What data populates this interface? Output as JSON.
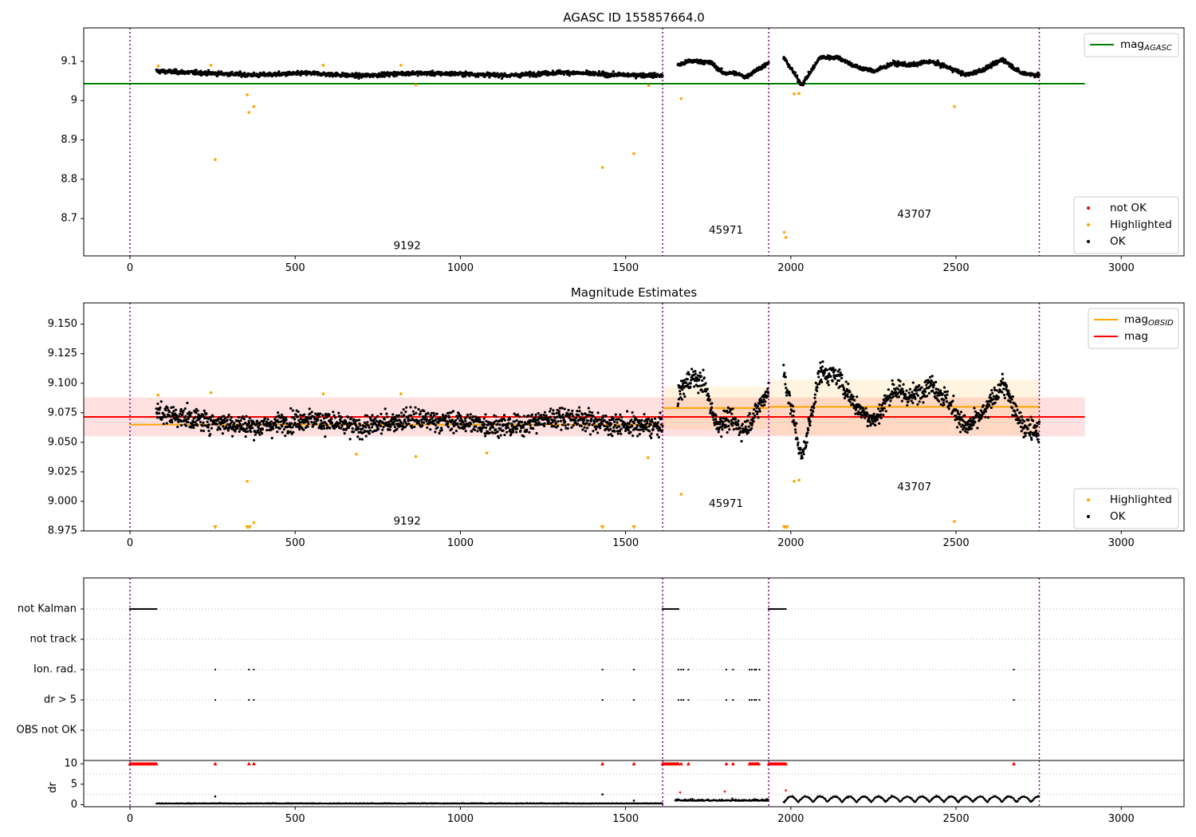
{
  "chart_data": [
    {
      "type": "scatter",
      "title": "AGASC ID 155857664.0",
      "xlim": [
        -140,
        3190
      ],
      "ylim": [
        8.605,
        9.185
      ],
      "xticks": [
        0,
        500,
        1000,
        1500,
        2000,
        2500,
        3000
      ],
      "yticks": [
        8.7,
        8.8,
        8.9,
        9.0,
        9.1
      ],
      "obs_boundaries": [
        0,
        1612,
        1933,
        2752
      ],
      "obsid_labels": [
        {
          "text": "9192",
          "x": 805,
          "y": 8.63
        },
        {
          "text": "45971",
          "x": 1770,
          "y": 8.67
        },
        {
          "text": "43707",
          "x": 2340,
          "y": 8.71
        }
      ],
      "lines": [
        {
          "name": "mag",
          "subscript": "AGASC",
          "color": "#008000",
          "x": [
            -140,
            2890
          ],
          "y": [
            9.043,
            9.043
          ]
        }
      ],
      "legend_top": [
        {
          "label": "mag",
          "subscript": "AGASC",
          "color": "#008000",
          "kind": "line"
        }
      ],
      "legend_bottom": [
        {
          "label": "not OK",
          "color": "#ff0000",
          "kind": "dot"
        },
        {
          "label": "Highlighted",
          "color": "#ffa500",
          "kind": "dot"
        },
        {
          "label": "OK",
          "color": "#000000",
          "kind": "dot"
        }
      ],
      "segments": [
        {
          "x": [
            80,
            1612
          ],
          "levels": [
            9.075,
            9.07,
            9.065,
            9.07,
            9.063,
            9.07,
            9.068,
            9.064,
            9.072,
            9.066,
            9.064
          ]
        },
        {
          "x": [
            1658,
            1933
          ],
          "levels": [
            9.09,
            9.1,
            9.1,
            9.095,
            9.07,
            9.07,
            9.06,
            9.08,
            9.095
          ]
        },
        {
          "x": [
            1978,
            2752
          ],
          "levels": [
            9.11,
            9.04,
            9.11,
            9.11,
            9.085,
            9.075,
            9.095,
            9.09,
            9.1,
            9.085,
            9.065,
            9.08,
            9.105,
            9.07,
            9.065
          ]
        }
      ],
      "highlighted": [
        {
          "x": 85,
          "y": 9.088
        },
        {
          "x": 245,
          "y": 9.09
        },
        {
          "x": 258,
          "y": 8.85
        },
        {
          "x": 355,
          "y": 9.015
        },
        {
          "x": 360,
          "y": 8.97
        },
        {
          "x": 375,
          "y": 8.985
        },
        {
          "x": 585,
          "y": 9.09
        },
        {
          "x": 820,
          "y": 9.09
        },
        {
          "x": 865,
          "y": 9.04
        },
        {
          "x": 1430,
          "y": 8.83
        },
        {
          "x": 1525,
          "y": 8.865
        },
        {
          "x": 1570,
          "y": 9.038
        },
        {
          "x": 1668,
          "y": 9.005
        },
        {
          "x": 1980,
          "y": 8.665
        },
        {
          "x": 1985,
          "y": 8.652
        },
        {
          "x": 2010,
          "y": 9.017
        },
        {
          "x": 2025,
          "y": 9.018
        },
        {
          "x": 2495,
          "y": 8.985
        }
      ],
      "not_ok": []
    },
    {
      "type": "scatter",
      "title": "Magnitude Estimates",
      "xlim": [
        -140,
        3190
      ],
      "ylim": [
        8.975,
        9.168
      ],
      "xticks": [
        0,
        500,
        1000,
        1500,
        2000,
        2500,
        3000
      ],
      "yticks": [
        8.975,
        9.0,
        9.025,
        9.05,
        9.075,
        9.1,
        9.125,
        9.15
      ],
      "ytick_labels": [
        "8.975",
        "9.000",
        "9.025",
        "9.050",
        "9.075",
        "9.100",
        "9.125",
        "9.150"
      ],
      "obs_boundaries": [
        0,
        1612,
        1933,
        2752
      ],
      "obsid_labels": [
        {
          "text": "9192",
          "x": 805,
          "y": 8.983
        },
        {
          "text": "45971",
          "x": 1770,
          "y": 8.998
        },
        {
          "text": "43707",
          "x": 2340,
          "y": 9.012
        }
      ],
      "lines": [
        {
          "name": "mag",
          "color": "#ff0000",
          "x": [
            -140,
            2890
          ],
          "y": [
            9.0715,
            9.0715
          ]
        },
        {
          "name": "mag",
          "subscript": "OBSID",
          "color": "#ffa500",
          "x": [
            0,
            1612
          ],
          "y": [
            9.065,
            9.065
          ]
        },
        {
          "name": "mag",
          "subscript": "OBSID",
          "color": "#ffa500",
          "x": [
            1612,
            1933
          ],
          "y": [
            9.079,
            9.079
          ]
        },
        {
          "name": "mag",
          "subscript": "OBSID",
          "color": "#ffa500",
          "x": [
            1933,
            2752
          ],
          "y": [
            9.08,
            9.08
          ]
        }
      ],
      "bands": [
        {
          "color": "#ff0000",
          "opacity": 0.12,
          "x": [
            -140,
            2890
          ],
          "y": [
            9.055,
            9.088
          ]
        },
        {
          "color": "#ffa500",
          "opacity": 0.12,
          "x": [
            1612,
            1933
          ],
          "y": [
            9.061,
            9.097
          ]
        },
        {
          "color": "#ffa500",
          "opacity": 0.12,
          "x": [
            1933,
            2752
          ],
          "y": [
            9.056,
            9.103
          ]
        }
      ],
      "legend_top": [
        {
          "label": "mag",
          "subscript": "OBSID",
          "color": "#ffa500",
          "kind": "line"
        },
        {
          "label": "mag",
          "color": "#ff0000",
          "kind": "line"
        }
      ],
      "legend_bottom": [
        {
          "label": "Highlighted",
          "color": "#ffa500",
          "kind": "dot"
        },
        {
          "label": "OK",
          "color": "#000000",
          "kind": "dot"
        }
      ],
      "segments": [
        {
          "x": [
            80,
            1612
          ],
          "levels": [
            9.075,
            9.068,
            9.063,
            9.07,
            9.062,
            9.07,
            9.067,
            9.063,
            9.072,
            9.065,
            9.063
          ]
        },
        {
          "x": [
            1658,
            1933
          ],
          "levels": [
            9.09,
            9.105,
            9.1,
            9.065,
            9.07,
            9.06,
            9.075,
            9.095
          ]
        },
        {
          "x": [
            1978,
            2752
          ],
          "levels": [
            9.11,
            9.035,
            9.11,
            9.105,
            9.08,
            9.068,
            9.095,
            9.088,
            9.1,
            9.085,
            9.062,
            9.075,
            9.1,
            9.065,
            9.06
          ]
        }
      ],
      "highlighted": [
        {
          "x": 85,
          "y": 9.09
        },
        {
          "x": 245,
          "y": 9.092
        },
        {
          "x": 355,
          "y": 9.017
        },
        {
          "x": 375,
          "y": 8.982
        },
        {
          "x": 585,
          "y": 9.091
        },
        {
          "x": 685,
          "y": 9.04
        },
        {
          "x": 820,
          "y": 9.091
        },
        {
          "x": 865,
          "y": 9.038
        },
        {
          "x": 1080,
          "y": 9.041
        },
        {
          "x": 1568,
          "y": 9.037
        },
        {
          "x": 1668,
          "y": 9.006
        },
        {
          "x": 2010,
          "y": 9.017
        },
        {
          "x": 2025,
          "y": 9.018
        },
        {
          "x": 2495,
          "y": 8.983
        }
      ],
      "clipped_low": [
        258,
        355,
        362,
        1430,
        1525,
        1980,
        1988
      ]
    },
    {
      "type": "scatter",
      "flag_categories": [
        "not Kalman",
        "not track",
        "Ion. rad.",
        "dr > 5",
        "OBS not OK"
      ],
      "xlim": [
        -140,
        3190
      ],
      "flags": {
        "not Kalman": [
          [
            0,
            80
          ],
          [
            1612,
            1660
          ],
          [
            1933,
            1985
          ]
        ],
        "not track": [],
        "Ion. rad.": [
          258,
          360,
          375,
          1430,
          1525,
          1660,
          1668,
          1675,
          1690,
          1805,
          1825,
          1875,
          1882,
          1890,
          1895,
          1905,
          2675
        ],
        "dr > 5": [
          258,
          360,
          375,
          1430,
          1525,
          1660,
          1668,
          1675,
          1690,
          1805,
          1825,
          1875,
          1882,
          1890,
          1895,
          1905,
          2675
        ],
        "OBS not OK": []
      },
      "obs_boundaries": [
        0,
        1612,
        1933,
        2752
      ]
    },
    {
      "type": "scatter",
      "ylabel": "dr",
      "xlim": [
        -140,
        3190
      ],
      "ylim": [
        -0.5,
        10.8
      ],
      "xticks": [
        0,
        500,
        1000,
        1500,
        2000,
        2500,
        3000
      ],
      "yticks": [
        0,
        5,
        10
      ],
      "obs_boundaries": [
        0,
        1612,
        1933,
        2752
      ],
      "saturated_value": 10,
      "saturated_x": [
        [
          0,
          80
        ],
        [
          258
        ],
        [
          360
        ],
        [
          375
        ],
        [
          1430
        ],
        [
          1525
        ],
        [
          1612,
          1660
        ],
        [
          1668
        ],
        [
          1690
        ],
        [
          1805
        ],
        [
          1825
        ],
        [
          1875,
          1905
        ],
        [
          1933,
          1985
        ],
        [
          2675
        ]
      ],
      "outliers": [
        {
          "x": 258,
          "y": 2.0
        },
        {
          "x": 1430,
          "y": 2.5
        },
        {
          "x": 1525,
          "y": 1.0
        },
        {
          "x": 1665,
          "y": 3.0
        },
        {
          "x": 1800,
          "y": 3.2
        },
        {
          "x": 1985,
          "y": 3.5
        }
      ]
    }
  ]
}
